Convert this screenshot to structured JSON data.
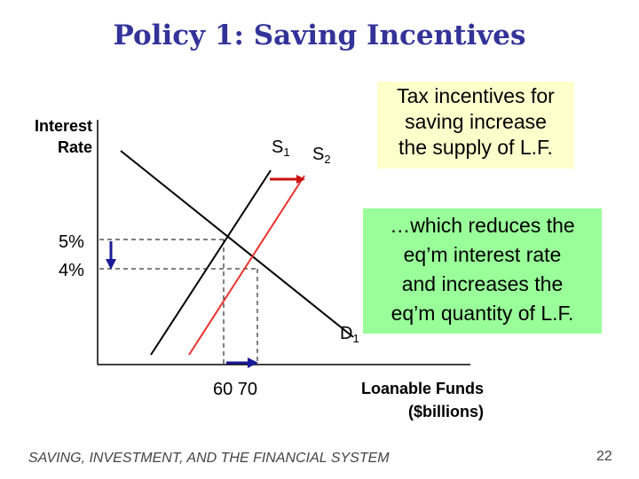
{
  "slide": {
    "title": "Policy 1:  Saving Incentives",
    "footer": "SAVING, INVESTMENT, AND THE FINANCIAL SYSTEM",
    "page_number": "22"
  },
  "graph": {
    "y_axis_label_line1": "Interest",
    "y_axis_label_line2": "Rate",
    "x_axis_label_line1": "Loanable Funds",
    "x_axis_label_line2": "($billions)",
    "y_ticks": [
      "5%",
      "4%"
    ],
    "x_ticks": "60 70",
    "supply_original": {
      "name": "S",
      "subscript": "1",
      "color": "#000000"
    },
    "supply_new": {
      "name": "S",
      "subscript": "2",
      "color": "#e8322d"
    },
    "demand": {
      "name": "D",
      "subscript": "1",
      "color": "#000000"
    },
    "shift_arrow_color": "#cc1111",
    "change_arrow_color": "#1a1a99",
    "equilibrium_before": {
      "rate": 5,
      "quantity": 60
    },
    "equilibrium_after": {
      "rate": 4,
      "quantity": 70
    }
  },
  "callouts": {
    "top": {
      "line1": "Tax incentives for",
      "line2": "saving increase",
      "line3": "the supply of L.F.",
      "background": "#ffffcc"
    },
    "bottom": {
      "line1": "…which reduces the",
      "line2": "eq’m interest rate",
      "line3": "and increases the",
      "line4": "eq’m quantity of L.F.",
      "background": "#99ff99"
    }
  }
}
